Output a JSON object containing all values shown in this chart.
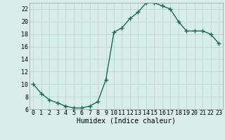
{
  "xlabel": "Humidex (Indice chaleur)",
  "x_values": [
    0,
    1,
    2,
    3,
    4,
    5,
    6,
    7,
    8,
    9,
    10,
    11,
    12,
    13,
    14,
    15,
    16,
    17,
    18,
    19,
    20,
    21,
    22,
    23
  ],
  "y_values": [
    10,
    8.5,
    7.5,
    7,
    6.5,
    6.2,
    6.2,
    6.5,
    7.2,
    10.7,
    18.3,
    19.0,
    20.5,
    21.5,
    23.0,
    23.0,
    22.5,
    22.0,
    20.0,
    18.5,
    18.5,
    18.5,
    18.0,
    16.5
  ],
  "line_color": "#1a6b5a",
  "marker": "+",
  "marker_size": 4,
  "bg_color": "#d9eeea",
  "grid_color": "#b8d8d4",
  "ylim": [
    6,
    23
  ],
  "xlim": [
    -0.5,
    23.5
  ],
  "yticks": [
    6,
    8,
    10,
    12,
    14,
    16,
    18,
    20,
    22
  ],
  "xtick_labels": [
    "0",
    "1",
    "2",
    "3",
    "4",
    "5",
    "6",
    "7",
    "8",
    "9",
    "10",
    "11",
    "12",
    "13",
    "14",
    "15",
    "16",
    "17",
    "18",
    "19",
    "20",
    "21",
    "22",
    "23"
  ],
  "xlabel_fontsize": 7,
  "tick_fontsize": 6,
  "line_width": 1.0,
  "marker_edge_width": 1.0
}
